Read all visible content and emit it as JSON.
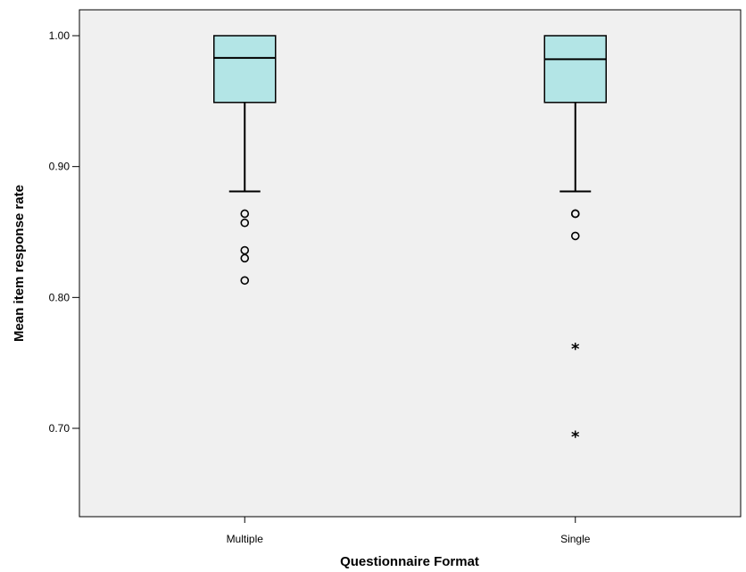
{
  "chart_data": {
    "type": "boxplot",
    "xlabel": "Questionnaire Format",
    "ylabel": "Mean item response rate",
    "categories": [
      "Multiple",
      "Single"
    ],
    "ylim": [
      0.63,
      1.02
    ],
    "yticks": [
      0.7,
      0.8,
      0.9,
      1.0
    ],
    "ytick_labels": [
      "0.70",
      "0.80",
      "0.90",
      "1.00"
    ],
    "grid": false,
    "legend": "none",
    "colors": {
      "box_fill": "#b3e5e6",
      "plot_background": "#f0f0f0",
      "stroke": "#000000"
    },
    "boxes": [
      {
        "category": "Multiple",
        "whisker_low": 0.881,
        "q1": 0.949,
        "median": 0.983,
        "q3": 1.0,
        "whisker_high": 1.0,
        "outliers": [
          0.864,
          0.857,
          0.836,
          0.83,
          0.813
        ],
        "extremes": []
      },
      {
        "category": "Single",
        "whisker_low": 0.881,
        "q1": 0.949,
        "median": 0.982,
        "q3": 1.0,
        "whisker_high": 1.0,
        "outliers": [
          0.864,
          0.864,
          0.847
        ],
        "extremes": [
          0.762,
          0.695
        ]
      }
    ]
  }
}
